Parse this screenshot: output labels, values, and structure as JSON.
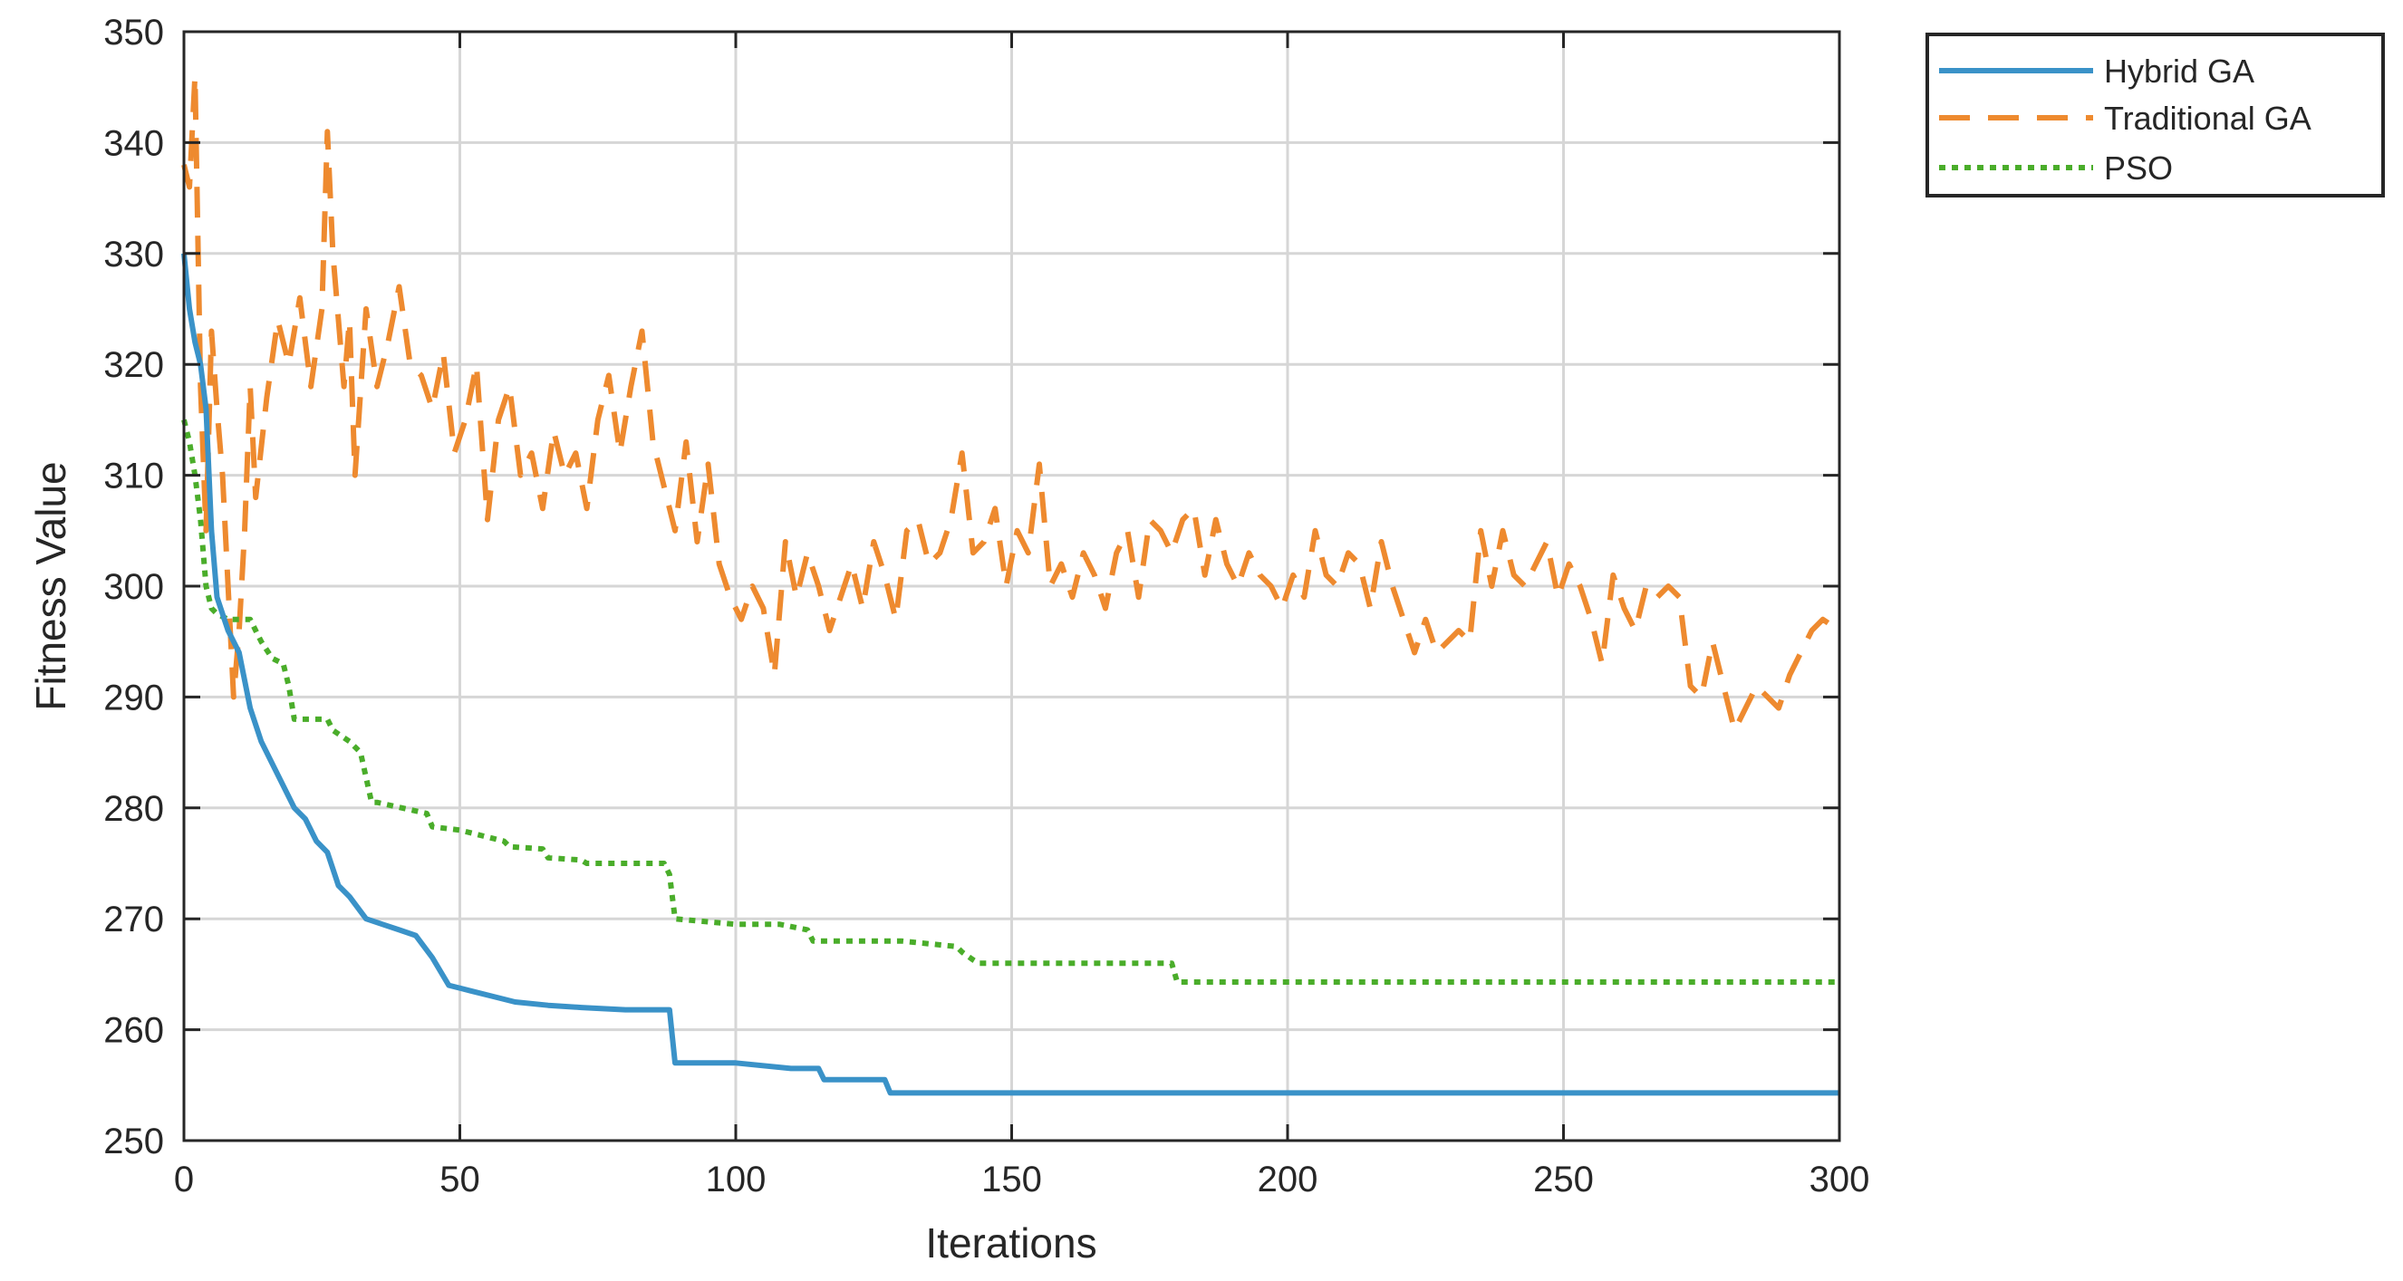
{
  "chart_data": {
    "type": "line",
    "title": "",
    "xlabel": "Iterations",
    "ylabel": "Fitness Value",
    "xlim": [
      0,
      300
    ],
    "ylim": [
      250,
      350
    ],
    "xticks": [
      "0",
      "50",
      "100",
      "150",
      "200",
      "250",
      "300"
    ],
    "yticks": [
      "250",
      "260",
      "270",
      "280",
      "290",
      "300",
      "310",
      "320",
      "330",
      "340",
      "350"
    ],
    "grid": true,
    "legend": {
      "placement": "outside-top-right"
    },
    "series": [
      {
        "name": "Hybrid GA",
        "color": "#3a92c8",
        "style": "solid",
        "x": [
          0,
          1,
          2,
          3,
          4,
          5,
          6,
          8,
          10,
          12,
          14,
          16,
          18,
          20,
          22,
          24,
          26,
          28,
          30,
          33,
          36,
          39,
          42,
          45,
          48,
          52,
          56,
          60,
          66,
          72,
          80,
          88,
          89,
          100,
          110,
          115,
          116,
          127,
          128,
          150,
          200,
          250,
          300
        ],
        "y": [
          330,
          325,
          322,
          320,
          316,
          305,
          299,
          296,
          294,
          289,
          286,
          284,
          282,
          280,
          279,
          277,
          276,
          273,
          272,
          270,
          269.5,
          269,
          268.5,
          266.5,
          264,
          263.5,
          263,
          262.5,
          262.2,
          262,
          261.8,
          261.8,
          257,
          257,
          256.5,
          256.5,
          255.5,
          255.5,
          254.3,
          254.3,
          254.3,
          254.3,
          254.3
        ]
      },
      {
        "name": "Traditional GA",
        "color": "#ee8a2f",
        "style": "dashed",
        "x": [
          0,
          1,
          2,
          3,
          4,
          5,
          6,
          7,
          8,
          9,
          10,
          11,
          12,
          13,
          15,
          17,
          19,
          21,
          23,
          25,
          26,
          27,
          29,
          30,
          31,
          33,
          35,
          37,
          39,
          41,
          43,
          45,
          47,
          49,
          51,
          53,
          55,
          57,
          59,
          61,
          63,
          65,
          67,
          69,
          71,
          73,
          75,
          77,
          79,
          81,
          83,
          85,
          87,
          89,
          91,
          93,
          95,
          97,
          99,
          101,
          103,
          105,
          107,
          109,
          111,
          113,
          115,
          117,
          119,
          121,
          123,
          125,
          127,
          129,
          131,
          133,
          135,
          137,
          139,
          141,
          143,
          145,
          147,
          149,
          151,
          153,
          155,
          157,
          159,
          161,
          163,
          165,
          167,
          169,
          171,
          173,
          175,
          177,
          179,
          181,
          183,
          185,
          187,
          189,
          191,
          193,
          195,
          197,
          199,
          201,
          203,
          205,
          207,
          209,
          211,
          213,
          215,
          217,
          219,
          221,
          223,
          225,
          227,
          229,
          231,
          233,
          235,
          237,
          239,
          241,
          243,
          245,
          247,
          249,
          251,
          253,
          255,
          257,
          259,
          261,
          263,
          265,
          267,
          269,
          271,
          273,
          275,
          277,
          279,
          281,
          283,
          285,
          287,
          289,
          291,
          293,
          295,
          297,
          300
        ],
        "y": [
          338,
          336,
          346,
          318,
          305,
          323,
          316,
          310,
          300,
          290,
          296,
          305,
          318,
          308,
          317,
          324,
          320,
          326,
          318,
          325,
          341,
          330,
          318,
          324,
          310,
          325,
          318,
          322,
          327,
          320,
          319,
          316,
          321,
          312,
          315,
          320,
          306,
          315,
          318,
          310,
          312,
          307,
          314,
          310,
          312,
          307,
          315,
          319,
          312,
          318,
          323,
          313,
          309,
          305,
          313,
          304,
          311,
          302,
          299,
          297,
          300,
          298,
          292,
          304,
          299,
          303,
          300,
          296,
          299,
          302,
          298,
          304,
          301,
          297,
          305,
          306,
          302,
          303,
          306,
          312,
          303,
          304,
          307,
          300,
          305,
          303,
          311,
          300,
          302,
          299,
          303,
          301,
          298,
          303,
          305,
          299,
          306,
          305,
          303,
          306,
          307,
          301,
          306,
          302,
          300,
          303,
          301,
          300,
          298,
          301,
          299,
          305,
          301,
          300,
          303,
          302,
          298,
          304,
          300,
          297,
          294,
          297,
          294,
          295,
          296,
          295,
          305,
          300,
          305,
          301,
          300,
          302,
          304,
          299,
          302,
          300,
          297,
          293,
          301,
          298,
          296,
          300,
          299,
          300,
          299,
          291,
          290,
          295,
          291,
          287,
          289,
          291,
          290,
          289,
          292,
          294,
          296,
          297,
          296
        ]
      },
      {
        "name": "PSO",
        "color": "#4aad2a",
        "style": "dotted",
        "x": [
          0,
          1,
          2,
          3,
          4,
          5,
          6,
          8,
          10,
          12,
          13,
          14,
          16,
          18,
          19,
          20,
          26,
          27,
          30,
          32,
          34,
          35,
          44,
          45,
          50,
          58,
          59,
          65,
          66,
          72,
          73,
          80,
          87,
          88,
          89,
          100,
          108,
          113,
          114,
          130,
          140,
          141,
          143,
          144,
          170,
          179,
          180,
          200,
          250,
          300
        ],
        "y": [
          315,
          313,
          310,
          306,
          300,
          298,
          297.5,
          297,
          297,
          297,
          296,
          295,
          293.5,
          293,
          291,
          288,
          288,
          287,
          286,
          285,
          280.5,
          280.5,
          279.5,
          278.3,
          278,
          277,
          276.5,
          276.3,
          275.5,
          275.3,
          275,
          275,
          275,
          274,
          270,
          269.5,
          269.5,
          269,
          268,
          268,
          267.5,
          267,
          266.3,
          266,
          266,
          266,
          264.3,
          264.3,
          264.3,
          264.3
        ]
      }
    ]
  }
}
